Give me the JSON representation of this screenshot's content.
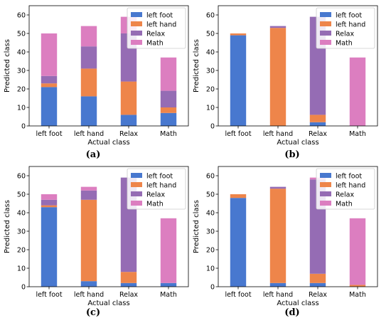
{
  "captions": [
    "(a)",
    "(b)",
    "(c)",
    "(d)"
  ],
  "colors": {
    "left foot": "#4878cf",
    "left hand": "#ee854a",
    "Relax": "#956cb4",
    "Math": "#dc7ec0"
  },
  "chart_data": [
    {
      "type": "bar",
      "stacked": true,
      "categories": [
        "left foot",
        "left hand",
        "Relax",
        "Math"
      ],
      "series": [
        {
          "name": "left foot",
          "values": [
            21,
            16,
            6,
            7
          ]
        },
        {
          "name": "left hand",
          "values": [
            2,
            15,
            18,
            3
          ]
        },
        {
          "name": "Relax",
          "values": [
            4,
            12,
            26,
            9
          ]
        },
        {
          "name": "Math",
          "values": [
            23,
            11,
            9,
            18
          ]
        }
      ],
      "xlabel": "Actual class",
      "ylabel": "Predicted class",
      "ylim": [
        0,
        65
      ],
      "yticks": [
        0,
        10,
        20,
        30,
        40,
        50,
        60
      ],
      "grid": false,
      "legend": "top-right"
    },
    {
      "type": "bar",
      "stacked": true,
      "categories": [
        "left foot",
        "left hand",
        "Relax",
        "Math"
      ],
      "series": [
        {
          "name": "left foot",
          "values": [
            49,
            0,
            2,
            0
          ]
        },
        {
          "name": "left hand",
          "values": [
            1,
            53,
            4,
            0
          ]
        },
        {
          "name": "Relax",
          "values": [
            0,
            1,
            53,
            0
          ]
        },
        {
          "name": "Math",
          "values": [
            0,
            0,
            0,
            37
          ]
        }
      ],
      "xlabel": "Actual class",
      "ylabel": "Predicted class",
      "ylim": [
        0,
        65
      ],
      "yticks": [
        0,
        10,
        20,
        30,
        40,
        50,
        60
      ],
      "grid": false,
      "legend": "top-right"
    },
    {
      "type": "bar",
      "stacked": true,
      "categories": [
        "left foot",
        "left hand",
        "Relax",
        "Math"
      ],
      "series": [
        {
          "name": "left foot",
          "values": [
            43,
            3,
            2,
            2
          ]
        },
        {
          "name": "left hand",
          "values": [
            1,
            44,
            6,
            0
          ]
        },
        {
          "name": "Relax",
          "values": [
            3,
            5,
            51,
            0
          ]
        },
        {
          "name": "Math",
          "values": [
            3,
            2,
            0,
            35
          ]
        }
      ],
      "xlabel": "Actual class",
      "ylabel": "Predicted class",
      "ylim": [
        0,
        65
      ],
      "yticks": [
        0,
        10,
        20,
        30,
        40,
        50,
        60
      ],
      "grid": false,
      "legend": "top-right"
    },
    {
      "type": "bar",
      "stacked": true,
      "categories": [
        "left foot",
        "left hand",
        "Relax",
        "Math"
      ],
      "series": [
        {
          "name": "left foot",
          "values": [
            48,
            2,
            2,
            0
          ]
        },
        {
          "name": "left hand",
          "values": [
            2,
            51,
            5,
            1
          ]
        },
        {
          "name": "Relax",
          "values": [
            0,
            1,
            51,
            0
          ]
        },
        {
          "name": "Math",
          "values": [
            0,
            0,
            1,
            36
          ]
        }
      ],
      "xlabel": "Actual class",
      "ylabel": "Predicted class",
      "ylim": [
        0,
        65
      ],
      "yticks": [
        0,
        10,
        20,
        30,
        40,
        50,
        60
      ],
      "grid": false,
      "legend": "top-right"
    }
  ]
}
